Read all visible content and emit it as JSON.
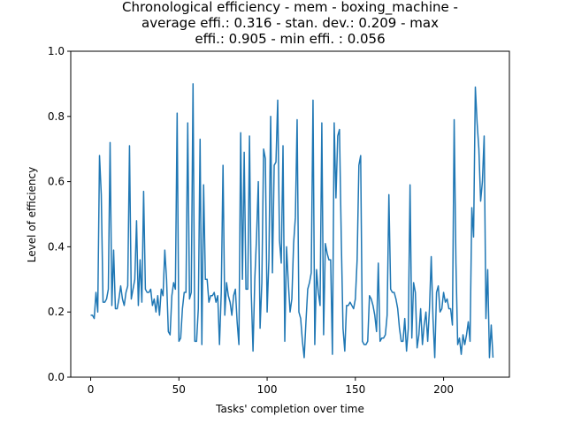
{
  "chart_data": {
    "type": "line",
    "title_lines": [
      "Chronological efficiency - mem - boxing_machine -",
      "average effi.: 0.316 - stan. dev.: 0.209 - max",
      "effi.: 0.905 - min effi. : 0.056"
    ],
    "xlabel": "Tasks' completion over time",
    "ylabel": "Level of efficiency",
    "xlim": [
      -11.3,
      237.3
    ],
    "ylim": [
      0,
      1
    ],
    "xticks": [
      0,
      50,
      100,
      150,
      200
    ],
    "yticks": [
      0.0,
      0.2,
      0.4,
      0.6,
      0.8,
      1.0
    ],
    "ytick_labels": [
      "0.0",
      "0.2",
      "0.4",
      "0.6",
      "0.8",
      "1.0"
    ],
    "grid": false,
    "line_color": "#1f77b4",
    "series": [
      {
        "values": [
          0.19,
          0.19,
          0.18,
          0.26,
          0.2,
          0.68,
          0.56,
          0.23,
          0.23,
          0.24,
          0.27,
          0.72,
          0.22,
          0.39,
          0.21,
          0.21,
          0.24,
          0.28,
          0.24,
          0.22,
          0.26,
          0.28,
          0.71,
          0.24,
          0.27,
          0.3,
          0.48,
          0.22,
          0.36,
          0.23,
          0.57,
          0.27,
          0.26,
          0.26,
          0.27,
          0.22,
          0.24,
          0.2,
          0.25,
          0.19,
          0.27,
          0.25,
          0.39,
          0.3,
          0.14,
          0.13,
          0.25,
          0.29,
          0.27,
          0.81,
          0.11,
          0.12,
          0.21,
          0.26,
          0.26,
          0.78,
          0.24,
          0.26,
          0.9,
          0.11,
          0.11,
          0.21,
          0.73,
          0.1,
          0.59,
          0.3,
          0.3,
          0.23,
          0.25,
          0.25,
          0.26,
          0.23,
          0.25,
          0.1,
          0.26,
          0.65,
          0.19,
          0.29,
          0.25,
          0.23,
          0.19,
          0.25,
          0.27,
          0.17,
          0.1,
          0.75,
          0.3,
          0.69,
          0.27,
          0.27,
          0.74,
          0.26,
          0.08,
          0.3,
          0.43,
          0.6,
          0.15,
          0.29,
          0.7,
          0.67,
          0.2,
          0.36,
          0.8,
          0.32,
          0.65,
          0.66,
          0.85,
          0.42,
          0.35,
          0.71,
          0.11,
          0.4,
          0.29,
          0.2,
          0.24,
          0.41,
          0.49,
          0.79,
          0.2,
          0.18,
          0.11,
          0.06,
          0.17,
          0.27,
          0.29,
          0.32,
          0.85,
          0.1,
          0.33,
          0.26,
          0.22,
          0.78,
          0.13,
          0.41,
          0.38,
          0.36,
          0.36,
          0.07,
          0.78,
          0.55,
          0.74,
          0.76,
          0.43,
          0.15,
          0.08,
          0.22,
          0.22,
          0.23,
          0.22,
          0.21,
          0.24,
          0.36,
          0.65,
          0.68,
          0.11,
          0.1,
          0.1,
          0.11,
          0.25,
          0.24,
          0.22,
          0.19,
          0.14,
          0.35,
          0.11,
          0.12,
          0.12,
          0.13,
          0.19,
          0.56,
          0.27,
          0.26,
          0.26,
          0.24,
          0.21,
          0.15,
          0.11,
          0.11,
          0.18,
          0.08,
          0.15,
          0.59,
          0.12,
          0.29,
          0.26,
          0.09,
          0.13,
          0.21,
          0.1,
          0.16,
          0.2,
          0.11,
          0.21,
          0.37,
          0.18,
          0.06,
          0.26,
          0.28,
          0.2,
          0.21,
          0.26,
          0.23,
          0.24,
          0.21,
          0.21,
          0.16,
          0.79,
          0.35,
          0.1,
          0.12,
          0.07,
          0.13,
          0.1,
          0.13,
          0.17,
          0.11,
          0.52,
          0.43,
          0.89,
          0.78,
          0.7,
          0.54,
          0.6,
          0.74,
          0.18,
          0.33,
          0.06,
          0.16,
          0.06
        ]
      }
    ]
  }
}
